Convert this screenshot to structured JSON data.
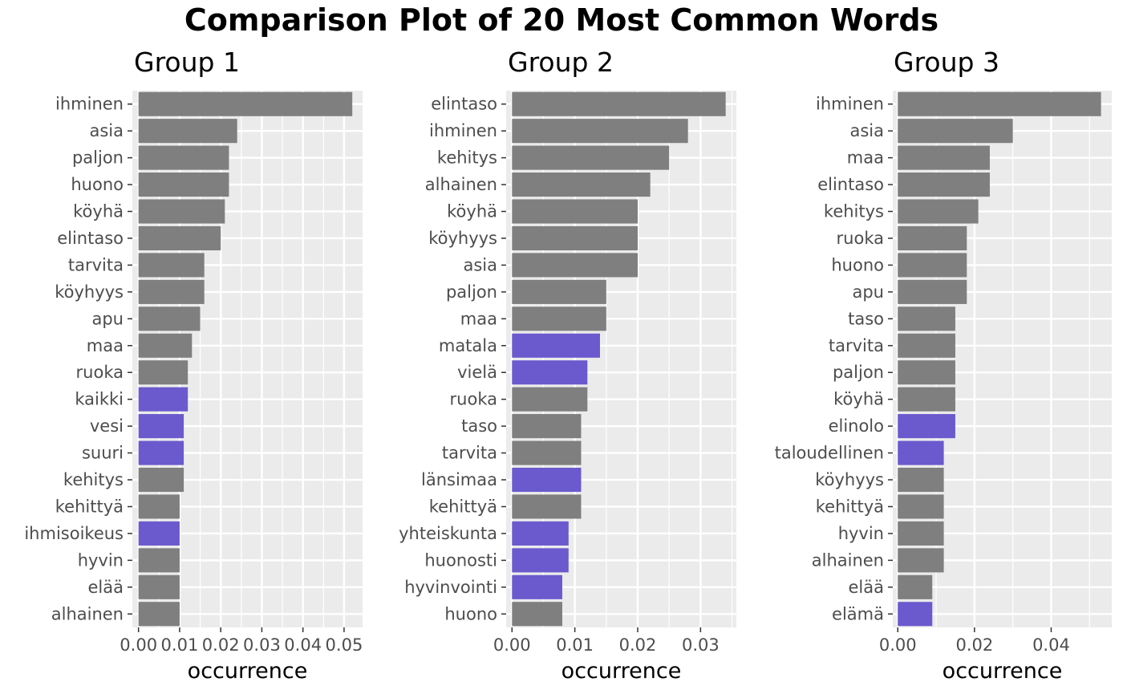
{
  "colors": {
    "panel_bg": "#ebebeb",
    "grid": "#ffffff",
    "default_bar": "#7f7f7f",
    "highlight_bar": "#6a5acd",
    "tick_text": "#4d4d4d"
  },
  "chart_data": {
    "type": "bar",
    "orientation": "horizontal",
    "title": "Comparison Plot of 20 Most Common Words",
    "grid": true,
    "panels": [
      {
        "title": "Group 1",
        "xlabel": "occurrence",
        "xlim": [
          -0.0015,
          0.0545
        ],
        "ticks": [
          0.0,
          0.01,
          0.02,
          0.03,
          0.04,
          0.05
        ],
        "tick_labels": [
          "0.00",
          "0.01",
          "0.02",
          "0.03",
          "0.04",
          "0.05"
        ],
        "bars": [
          {
            "word": "ihminen",
            "value": 0.052,
            "highlight": false
          },
          {
            "word": "asia",
            "value": 0.024,
            "highlight": false
          },
          {
            "word": "paljon",
            "value": 0.022,
            "highlight": false
          },
          {
            "word": "huono",
            "value": 0.022,
            "highlight": false
          },
          {
            "word": "köyhä",
            "value": 0.021,
            "highlight": false
          },
          {
            "word": "elintaso",
            "value": 0.02,
            "highlight": false
          },
          {
            "word": "tarvita",
            "value": 0.016,
            "highlight": false
          },
          {
            "word": "köyhyys",
            "value": 0.016,
            "highlight": false
          },
          {
            "word": "apu",
            "value": 0.015,
            "highlight": false
          },
          {
            "word": "maa",
            "value": 0.013,
            "highlight": false
          },
          {
            "word": "ruoka",
            "value": 0.012,
            "highlight": false
          },
          {
            "word": "kaikki",
            "value": 0.012,
            "highlight": true
          },
          {
            "word": "vesi",
            "value": 0.011,
            "highlight": true
          },
          {
            "word": "suuri",
            "value": 0.011,
            "highlight": true
          },
          {
            "word": "kehitys",
            "value": 0.011,
            "highlight": false
          },
          {
            "word": "kehittyä",
            "value": 0.01,
            "highlight": false
          },
          {
            "word": "ihmisoikeus",
            "value": 0.01,
            "highlight": true
          },
          {
            "word": "hyvin",
            "value": 0.01,
            "highlight": false
          },
          {
            "word": "elää",
            "value": 0.01,
            "highlight": false
          },
          {
            "word": "alhainen",
            "value": 0.01,
            "highlight": false
          }
        ]
      },
      {
        "title": "Group 2",
        "xlabel": "occurrence",
        "xlim": [
          -0.00093,
          0.0357
        ],
        "ticks": [
          0.0,
          0.01,
          0.02,
          0.03
        ],
        "tick_labels": [
          "0.00",
          "0.01",
          "0.02",
          "0.03"
        ],
        "bars": [
          {
            "word": "elintaso",
            "value": 0.034,
            "highlight": false
          },
          {
            "word": "ihminen",
            "value": 0.028,
            "highlight": false
          },
          {
            "word": "kehitys",
            "value": 0.025,
            "highlight": false
          },
          {
            "word": "alhainen",
            "value": 0.022,
            "highlight": false
          },
          {
            "word": "köyhä",
            "value": 0.02,
            "highlight": false
          },
          {
            "word": "köyhyys",
            "value": 0.02,
            "highlight": false
          },
          {
            "word": "asia",
            "value": 0.02,
            "highlight": false
          },
          {
            "word": "paljon",
            "value": 0.015,
            "highlight": false
          },
          {
            "word": "maa",
            "value": 0.015,
            "highlight": false
          },
          {
            "word": "matala",
            "value": 0.014,
            "highlight": true
          },
          {
            "word": "vielä",
            "value": 0.012,
            "highlight": true
          },
          {
            "word": "ruoka",
            "value": 0.012,
            "highlight": false
          },
          {
            "word": "taso",
            "value": 0.011,
            "highlight": false
          },
          {
            "word": "tarvita",
            "value": 0.011,
            "highlight": false
          },
          {
            "word": "länsimaa",
            "value": 0.011,
            "highlight": true
          },
          {
            "word": "kehittyä",
            "value": 0.011,
            "highlight": false
          },
          {
            "word": "yhteiskunta",
            "value": 0.009,
            "highlight": true
          },
          {
            "word": "huonosti",
            "value": 0.009,
            "highlight": true
          },
          {
            "word": "hyvinvointi",
            "value": 0.008,
            "highlight": true
          },
          {
            "word": "huono",
            "value": 0.008,
            "highlight": false
          }
        ]
      },
      {
        "title": "Group 3",
        "xlabel": "occurrence",
        "xlim": [
          -0.0013,
          0.0558
        ],
        "ticks": [
          0.0,
          0.02,
          0.04
        ],
        "tick_labels": [
          "0.00",
          "0.02",
          "0.04"
        ],
        "bars": [
          {
            "word": "ihminen",
            "value": 0.053,
            "highlight": false
          },
          {
            "word": "asia",
            "value": 0.03,
            "highlight": false
          },
          {
            "word": "maa",
            "value": 0.024,
            "highlight": false
          },
          {
            "word": "elintaso",
            "value": 0.024,
            "highlight": false
          },
          {
            "word": "kehitys",
            "value": 0.021,
            "highlight": false
          },
          {
            "word": "ruoka",
            "value": 0.018,
            "highlight": false
          },
          {
            "word": "huono",
            "value": 0.018,
            "highlight": false
          },
          {
            "word": "apu",
            "value": 0.018,
            "highlight": false
          },
          {
            "word": "taso",
            "value": 0.015,
            "highlight": false
          },
          {
            "word": "tarvita",
            "value": 0.015,
            "highlight": false
          },
          {
            "word": "paljon",
            "value": 0.015,
            "highlight": false
          },
          {
            "word": "köyhä",
            "value": 0.015,
            "highlight": false
          },
          {
            "word": "elinolo",
            "value": 0.015,
            "highlight": true
          },
          {
            "word": "taloudellinen",
            "value": 0.012,
            "highlight": true
          },
          {
            "word": "köyhyys",
            "value": 0.012,
            "highlight": false
          },
          {
            "word": "kehittyä",
            "value": 0.012,
            "highlight": false
          },
          {
            "word": "hyvin",
            "value": 0.012,
            "highlight": false
          },
          {
            "word": "alhainen",
            "value": 0.012,
            "highlight": false
          },
          {
            "word": "elää",
            "value": 0.009,
            "highlight": false
          },
          {
            "word": "elämä",
            "value": 0.009,
            "highlight": true
          }
        ]
      }
    ]
  }
}
